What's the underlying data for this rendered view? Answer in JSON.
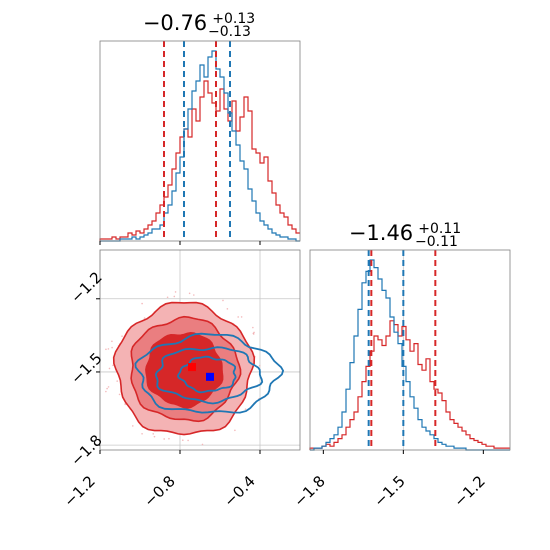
{
  "chart_data": {
    "type": "corner",
    "colors": {
      "red": "#d62728",
      "blue": "#1f77b4",
      "marker_red": "#ff0000",
      "marker_blue": "#0000ff"
    },
    "parameters": [
      {
        "title": {
          "median": "−0.76",
          "plus": "+0.13",
          "minus": "−0.13"
        },
        "range": [
          -1.2,
          -0.2
        ],
        "ticks": [
          -1.2,
          -0.8,
          -0.4
        ],
        "tick_labels": [
          "−1.2",
          "−0.8",
          "−0.4"
        ],
        "quantiles_red": [
          -0.88,
          -0.62
        ],
        "quantiles_blue": [
          -0.78,
          -0.55
        ]
      },
      {
        "title": {
          "median": "−1.46",
          "plus": "+0.11",
          "minus": "−0.11"
        },
        "range": [
          -1.85,
          -1.1
        ],
        "ticks": [
          -1.8,
          -1.5,
          -1.2
        ],
        "tick_labels": [
          "−1.8",
          "−1.5",
          "−1.2"
        ],
        "quantiles_red": [
          -1.62,
          -1.38
        ],
        "quantiles_blue": [
          -1.63,
          -1.5
        ]
      }
    ],
    "joint": {
      "xlim": [
        -1.2,
        -0.2
      ],
      "ylim": [
        -1.82,
        -1.0
      ],
      "xticks": [
        -1.2,
        -0.8,
        -0.4
      ],
      "yticks": [
        -1.2,
        -1.5,
        -1.8
      ],
      "ytick_labels": [
        "−1.2",
        "−1.5",
        "−1.8"
      ],
      "marker_red": [
        -0.74,
        -1.48
      ],
      "marker_blue": [
        -0.65,
        -1.52
      ],
      "red_center": [
        -0.78,
        -1.49
      ],
      "red_radii": [
        [
          0.34,
          0.27
        ],
        [
          0.27,
          0.21
        ],
        [
          0.19,
          0.15
        ]
      ],
      "blue_center": [
        -0.66,
        -1.51
      ],
      "blue_radii": [
        [
          0.35,
          0.16
        ],
        [
          0.26,
          0.11
        ],
        [
          0.14,
          0.07
        ]
      ]
    },
    "hist_red_1d_x": {
      "start": -1.2,
      "bin": 0.02,
      "counts": [
        1,
        1,
        1,
        2,
        1,
        2,
        2,
        4,
        3,
        5,
        4,
        6,
        8,
        10,
        14,
        18,
        22,
        28,
        36,
        44,
        52,
        56,
        52,
        66,
        60,
        72,
        80,
        74,
        69,
        65,
        76,
        66,
        60,
        70,
        55,
        62,
        72,
        65,
        46,
        44,
        39,
        42,
        30,
        24,
        18,
        14,
        12,
        8,
        6,
        4
      ]
    },
    "hist_blue_1d_x": {
      "start": -1.2,
      "bin": 0.02,
      "counts": [
        0,
        0,
        0,
        0,
        0,
        1,
        1,
        1,
        2,
        1,
        2,
        3,
        4,
        6,
        6,
        8,
        14,
        18,
        25,
        34,
        42,
        56,
        66,
        75,
        80,
        88,
        82,
        92,
        95,
        86,
        82,
        74,
        64,
        55,
        48,
        40,
        36,
        26,
        20,
        14,
        10,
        8,
        6,
        4,
        3,
        2,
        2,
        1,
        1,
        0
      ]
    },
    "hist_red_1d_y": {
      "start": -1.85,
      "bin": 0.015,
      "counts": [
        1,
        1,
        1,
        2,
        3,
        2,
        4,
        6,
        8,
        12,
        16,
        20,
        28,
        36,
        44,
        52,
        60,
        58,
        55,
        60,
        68,
        66,
        60,
        65,
        58,
        52,
        56,
        45,
        42,
        48,
        36,
        32,
        30,
        26,
        20,
        16,
        14,
        12,
        10,
        8,
        6,
        5,
        4,
        3,
        2,
        2,
        1,
        1,
        1,
        1
      ]
    },
    "hist_blue_1d_y": {
      "start": -1.85,
      "bin": 0.015,
      "counts": [
        0,
        1,
        1,
        2,
        4,
        6,
        8,
        12,
        20,
        32,
        46,
        60,
        74,
        88,
        94,
        100,
        96,
        90,
        84,
        80,
        70,
        62,
        56,
        44,
        36,
        28,
        22,
        16,
        12,
        10,
        8,
        6,
        4,
        3,
        2,
        2,
        1,
        1,
        1,
        0,
        0,
        0,
        0,
        0,
        0,
        0,
        0,
        0,
        0,
        0
      ]
    }
  }
}
